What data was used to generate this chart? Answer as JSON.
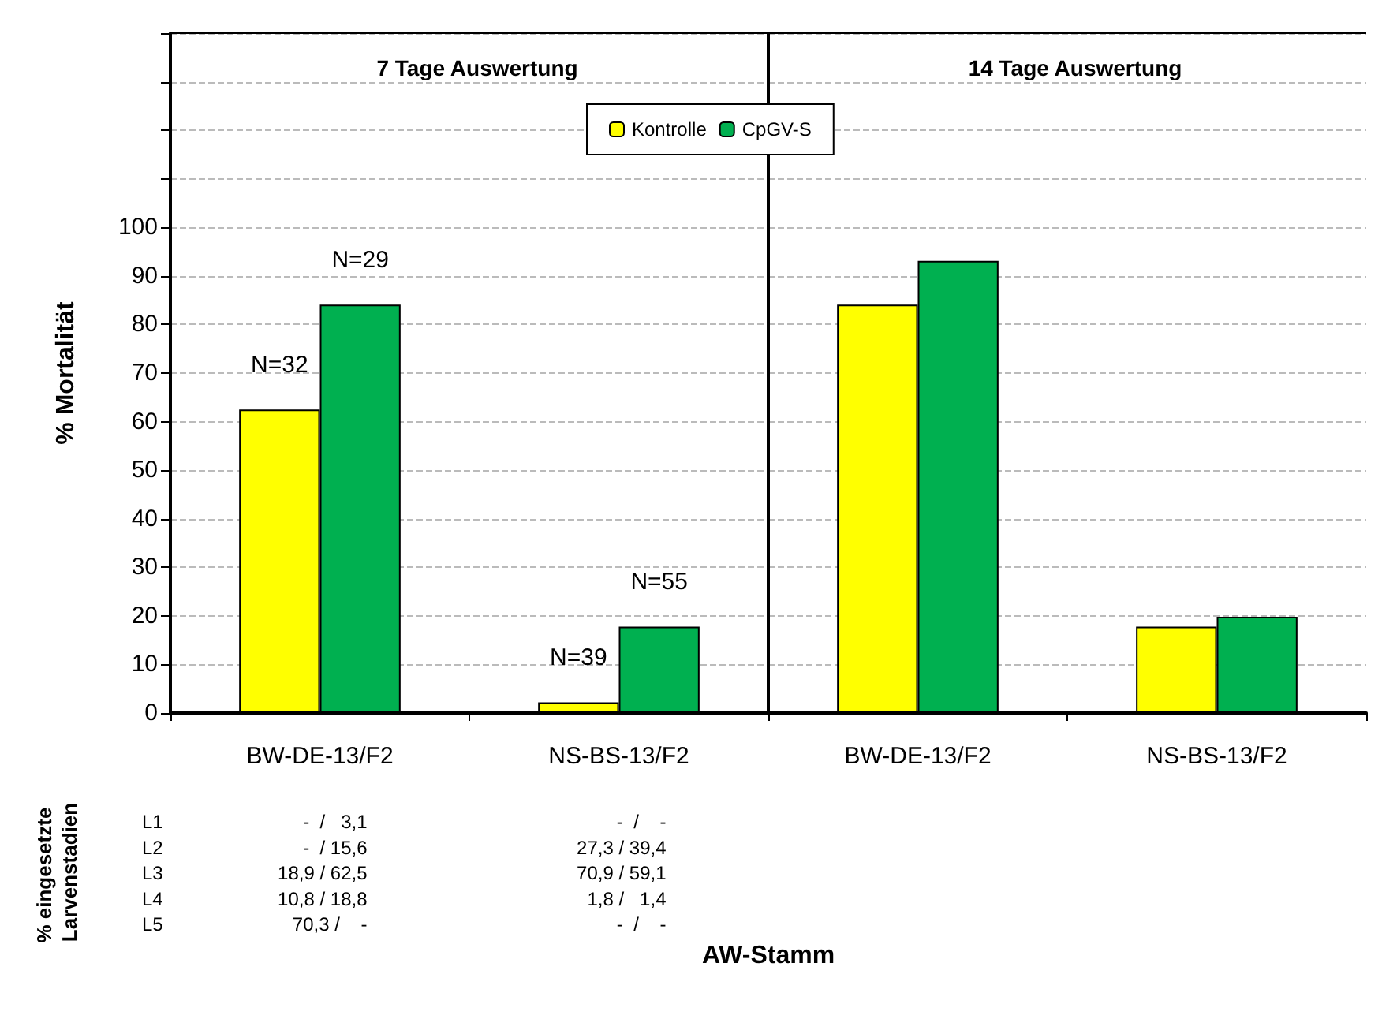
{
  "chart_data": [
    {
      "type": "bar",
      "title": "7 Tage Auswertung",
      "ylabel": "% Mortalität",
      "categories": [
        "BW-DE-13/F2",
        "NS-BS-13/F2"
      ],
      "series": [
        {
          "name": "Kontrolle",
          "color": "#ffff00",
          "values": [
            62.5,
            2.2
          ]
        },
        {
          "name": "CpGV-S",
          "color": "#00b050",
          "values": [
            84.1,
            17.8
          ]
        }
      ],
      "ylim": [
        0,
        140
      ],
      "yticks": [
        0,
        10,
        20,
        30,
        40,
        50,
        60,
        70,
        80,
        90,
        100,
        {
          "value": 110,
          "label": null
        },
        {
          "value": 120,
          "label": null
        },
        {
          "value": 130,
          "label": null
        },
        {
          "value": 140,
          "label": null
        }
      ],
      "grid": "y",
      "legend": "top right",
      "annotations": [
        "% eingesetzte Larvenstadien",
        "L1",
        "L2",
        "L3",
        "L4",
        "L5",
        "-  /   3,1",
        "-  / 15,6",
        "18,9 / 62,5",
        "10,8 / 18,8",
        "70,3 /    -",
        "-  /    -",
        "27,3 / 39,4",
        "70,9 / 59,1",
        "1,8 /   1,4",
        "-  /    -",
        "AW-Stamm",
        {
          "text": "N=32",
          "x": "BW-DE-13/F2",
          "y": 62.5
        },
        {
          "text": "N=29",
          "x": "BW-DE-13/F2",
          "y": 84.1
        },
        {
          "text": "N=39",
          "x": "NS-BS-13/F2",
          "y": 2.2
        },
        {
          "text": "N=55",
          "x": "NS-BS-13/F2",
          "y": 17.8
        }
      ]
    },
    {
      "type": "bar",
      "title": "14 Tage Auswertung",
      "categories": [
        "BW-DE-13/F2",
        "NS-BS-13/F2"
      ],
      "series": [
        {
          "color": "#ffff00",
          "values": [
            84.1,
            17.8
          ]
        },
        {
          "color": "#00b050",
          "values": [
            93.1,
            19.8
          ]
        }
      ],
      "ylim": [
        0,
        140
      ],
      "yticks": [
        0,
        10,
        20,
        30,
        40,
        50,
        60,
        70,
        80,
        90,
        100,
        {
          "value": 110,
          "label": null
        },
        {
          "value": 120,
          "label": null
        },
        {
          "value": 130,
          "label": null
        },
        {
          "value": 140,
          "label": null
        }
      ],
      "grid": "y",
      "tick_labels": "x"
    }
  ]
}
